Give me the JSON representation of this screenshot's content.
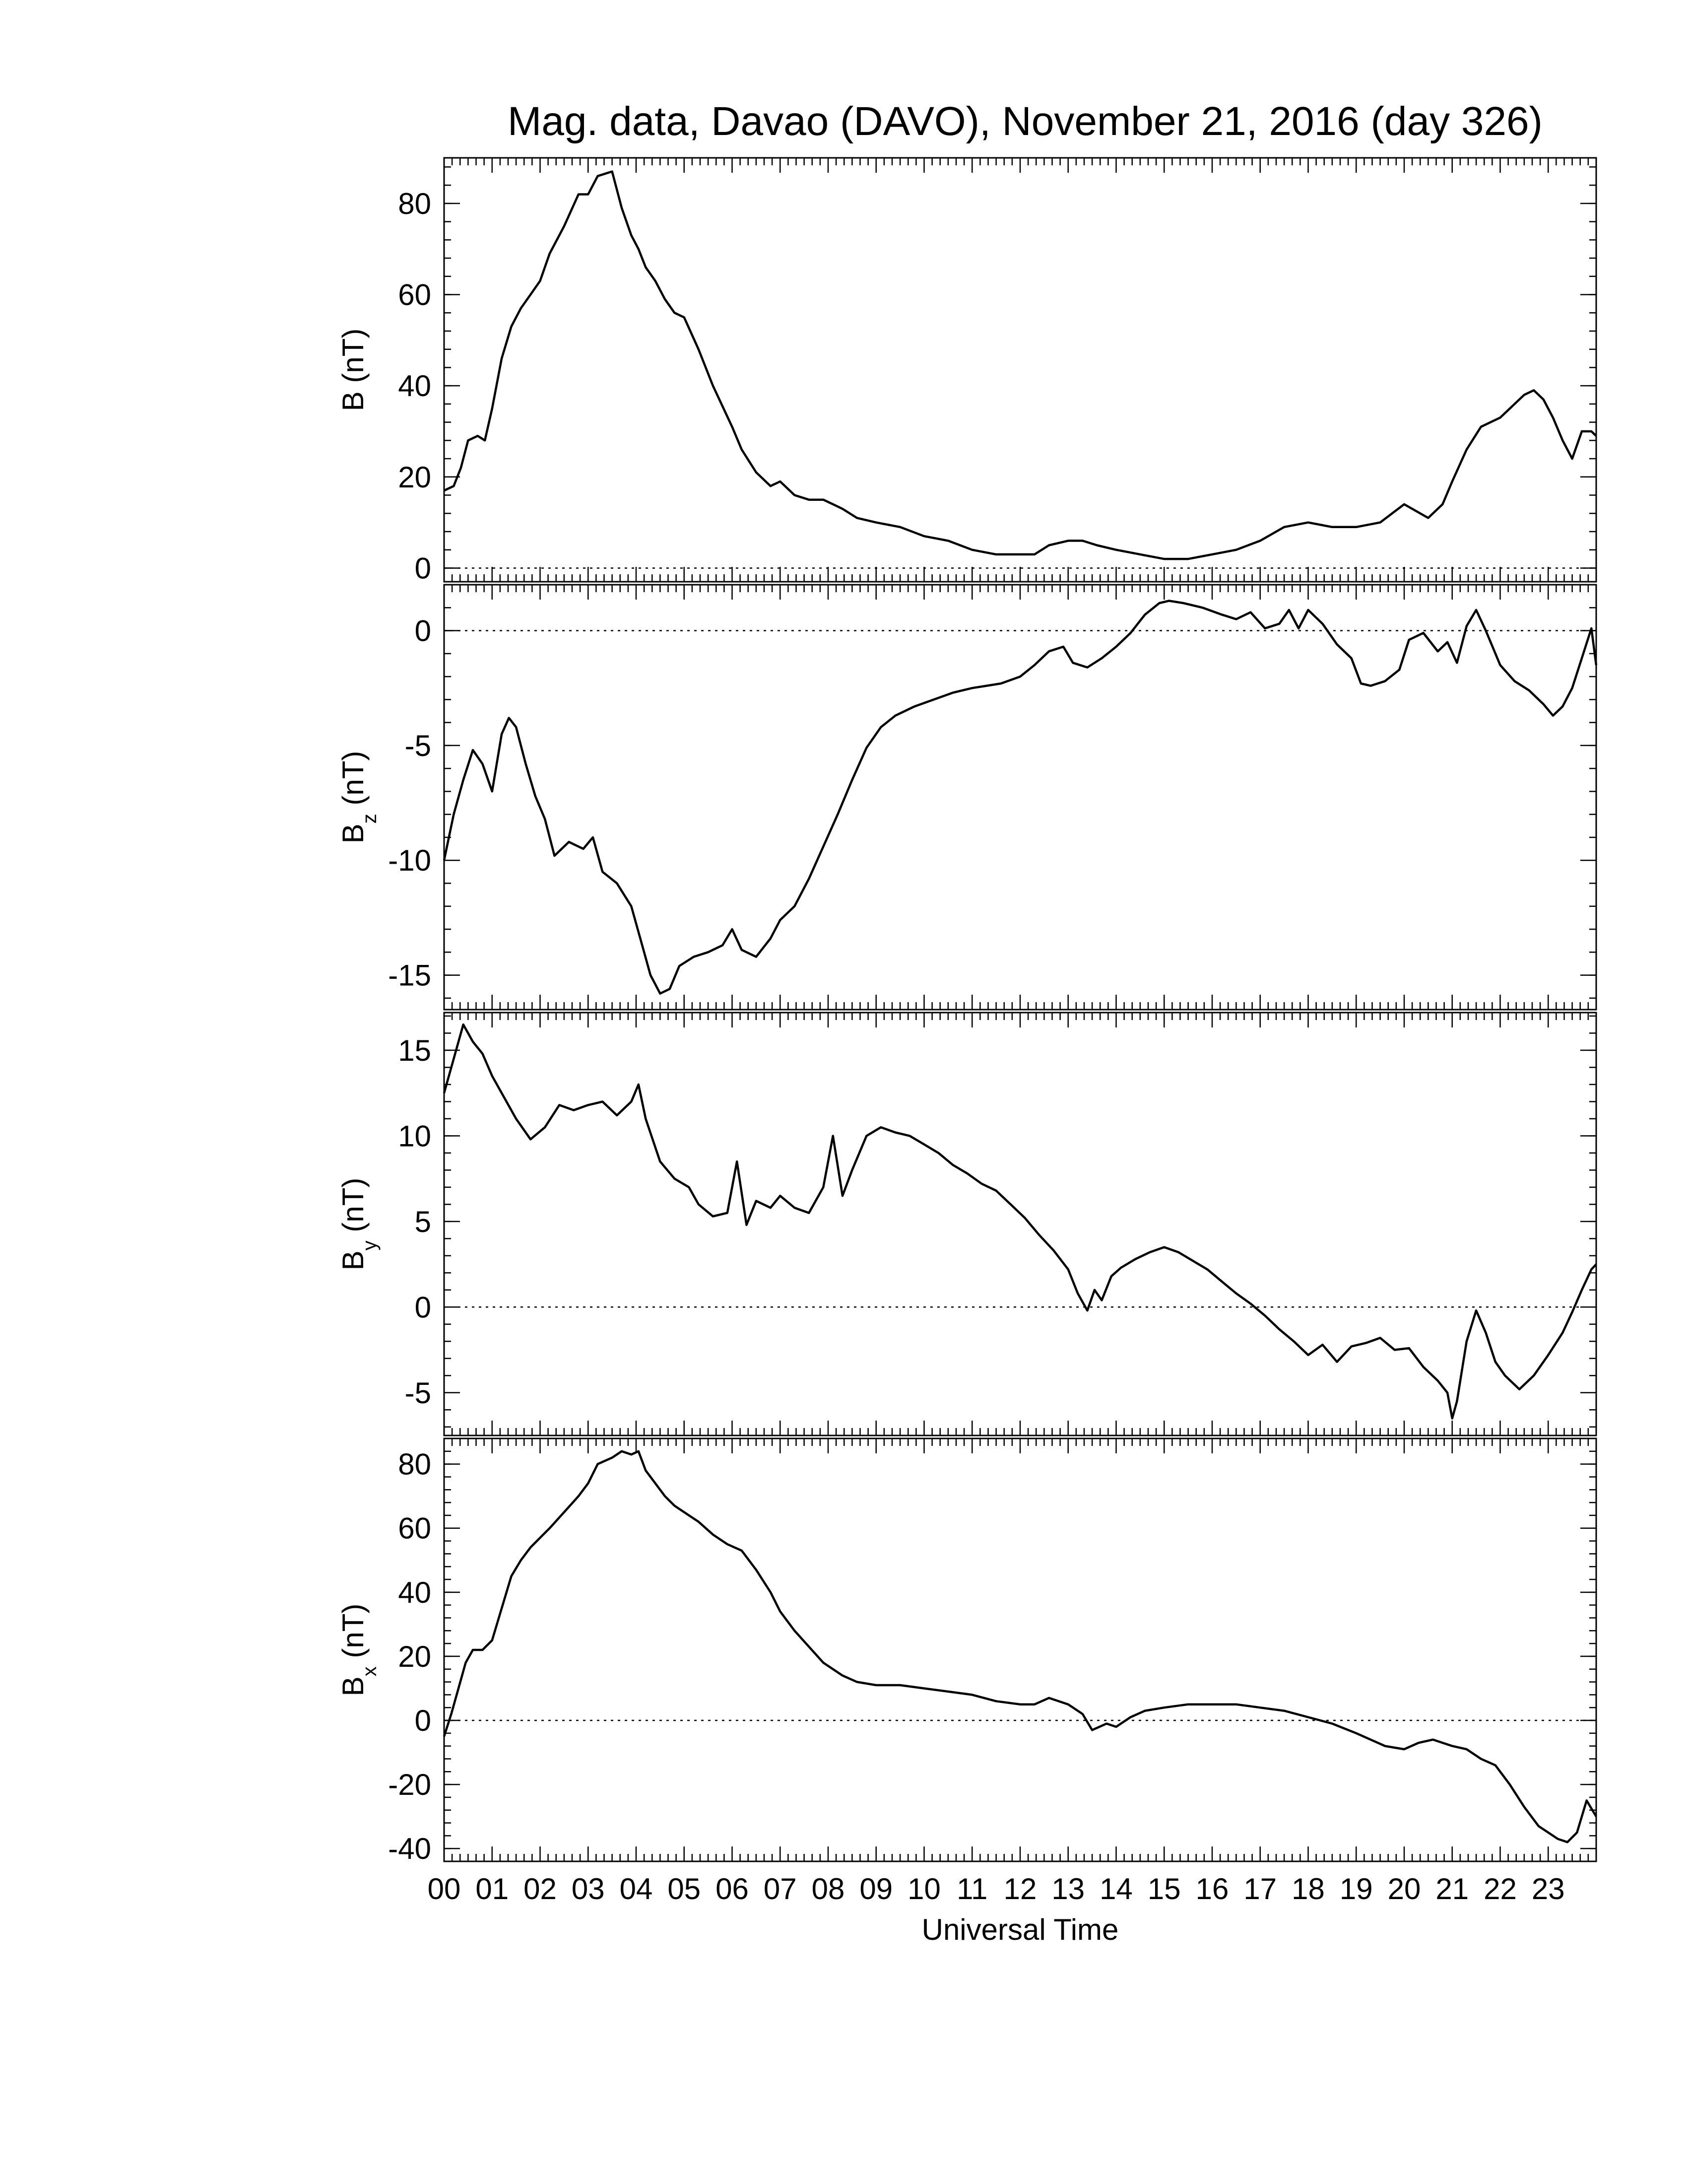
{
  "chart_data": {
    "type": "line",
    "title": "Mag. data, Davao (DAVO), November 21, 2016 (day 326)",
    "xlabel": "Universal Time",
    "x_tick_labels": [
      "00",
      "01",
      "02",
      "03",
      "04",
      "05",
      "06",
      "07",
      "08",
      "09",
      "10",
      "11",
      "12",
      "13",
      "14",
      "15",
      "16",
      "17",
      "18",
      "19",
      "20",
      "21",
      "22",
      "23"
    ],
    "xlim": [
      0,
      24
    ],
    "panels": [
      {
        "ylabel": "B (nT)",
        "ylabel_main": "B",
        "ylabel_sub": "",
        "ylabel_unit": " (nT)",
        "ylim": [
          -3,
          90
        ],
        "yticks": [
          0,
          20,
          40,
          60,
          80
        ],
        "zero_line": true,
        "series": [
          {
            "x": [
              0,
              0.2,
              0.35,
              0.5,
              0.7,
              0.85,
              1.0,
              1.2,
              1.4,
              1.6,
              1.8,
              2.0,
              2.2,
              2.5,
              2.8,
              3.0,
              3.2,
              3.5,
              3.7,
              3.9,
              4.05,
              4.2,
              4.4,
              4.6,
              4.8,
              5.0,
              5.3,
              5.6,
              6.0,
              6.2,
              6.5,
              6.8,
              7.0,
              7.3,
              7.6,
              7.9,
              8.1,
              8.3,
              8.6,
              9.0,
              9.5,
              10.0,
              10.5,
              11.0,
              11.5,
              12.0,
              12.3,
              12.6,
              13.0,
              13.3,
              13.6,
              14.0,
              14.5,
              15.0,
              15.5,
              16.0,
              16.5,
              17.0,
              17.5,
              18.0,
              18.5,
              19.0,
              19.5,
              20.0,
              20.5,
              20.8,
              21.0,
              21.3,
              21.6,
              22.0,
              22.3,
              22.5,
              22.7,
              22.9,
              23.1,
              23.3,
              23.5,
              23.7,
              23.9,
              24.0
            ],
            "y": [
              17,
              18,
              22,
              28,
              29,
              28,
              35,
              46,
              53,
              57,
              60,
              63,
              69,
              75,
              82,
              82,
              86,
              87,
              79,
              73,
              70,
              66,
              63,
              59,
              56,
              55,
              48,
              40,
              31,
              26,
              21,
              18,
              19,
              16,
              15,
              15,
              14,
              13,
              11,
              10,
              9,
              7,
              6,
              4,
              3,
              3,
              3,
              5,
              6,
              6,
              5,
              4,
              3,
              2,
              2,
              3,
              4,
              6,
              9,
              10,
              9,
              9,
              10,
              14,
              11,
              14,
              19,
              26,
              31,
              33,
              36,
              38,
              39,
              37,
              33,
              28,
              24,
              30,
              30,
              29
            ]
          }
        ]
      },
      {
        "ylabel": "Bz (nT)",
        "ylabel_main": "B",
        "ylabel_sub": "z",
        "ylabel_unit": " (nT)",
        "ylim": [
          -16.5,
          2
        ],
        "yticks": [
          0,
          -5,
          -10,
          -15
        ],
        "zero_line": true,
        "series": [
          {
            "x": [
              0,
              0.2,
              0.4,
              0.6,
              0.8,
              1.0,
              1.2,
              1.35,
              1.5,
              1.7,
              1.9,
              2.1,
              2.3,
              2.6,
              2.9,
              3.1,
              3.3,
              3.6,
              3.9,
              4.1,
              4.3,
              4.5,
              4.7,
              4.9,
              5.2,
              5.5,
              5.8,
              6.0,
              6.2,
              6.5,
              6.8,
              7.0,
              7.3,
              7.6,
              7.9,
              8.2,
              8.5,
              8.8,
              9.1,
              9.4,
              9.8,
              10.2,
              10.6,
              11.0,
              11.3,
              11.6,
              12.0,
              12.3,
              12.6,
              12.9,
              13.1,
              13.4,
              13.7,
              14.0,
              14.3,
              14.6,
              14.9,
              15.1,
              15.4,
              15.8,
              16.2,
              16.5,
              16.8,
              17.1,
              17.4,
              17.6,
              17.8,
              18.0,
              18.3,
              18.6,
              18.9,
              19.1,
              19.3,
              19.6,
              19.9,
              20.1,
              20.4,
              20.7,
              20.9,
              21.1,
              21.3,
              21.5,
              21.7,
              22.0,
              22.3,
              22.6,
              22.9,
              23.1,
              23.3,
              23.5,
              23.7,
              23.9,
              24.0
            ],
            "y": [
              -10,
              -8,
              -6.5,
              -5.2,
              -5.8,
              -7,
              -4.5,
              -3.8,
              -4.2,
              -5.8,
              -7.2,
              -8.2,
              -9.8,
              -9.2,
              -9.5,
              -9,
              -10.5,
              -11,
              -12,
              -13.5,
              -15,
              -15.8,
              -15.6,
              -14.6,
              -14.2,
              -14,
              -13.7,
              -13,
              -13.9,
              -14.2,
              -13.4,
              -12.6,
              -12,
              -10.8,
              -9.4,
              -8,
              -6.5,
              -5.1,
              -4.2,
              -3.7,
              -3.3,
              -3,
              -2.7,
              -2.5,
              -2.4,
              -2.3,
              -2,
              -1.5,
              -0.9,
              -0.7,
              -1.4,
              -1.6,
              -1.2,
              -0.7,
              -0.1,
              0.7,
              1.2,
              1.3,
              1.2,
              1,
              0.7,
              0.5,
              0.8,
              0.1,
              0.3,
              0.9,
              0.1,
              0.9,
              0.3,
              -0.6,
              -1.2,
              -2.3,
              -2.4,
              -2.2,
              -1.7,
              -0.4,
              -0.1,
              -0.9,
              -0.5,
              -1.4,
              0.2,
              0.9,
              0,
              -1.5,
              -2.2,
              -2.6,
              -3.2,
              -3.7,
              -3.3,
              -2.5,
              -1.2,
              0.1,
              -1.5
            ]
          }
        ]
      },
      {
        "ylabel": "By (nT)",
        "ylabel_main": "B",
        "ylabel_sub": "y",
        "ylabel_unit": " (nT)",
        "ylim": [
          -7.5,
          17.2
        ],
        "yticks": [
          15,
          10,
          5,
          0,
          -5
        ],
        "zero_line": true,
        "series": [
          {
            "x": [
              0,
              0.2,
              0.4,
              0.6,
              0.8,
              1.0,
              1.2,
              1.5,
              1.8,
              2.1,
              2.4,
              2.7,
              3.0,
              3.3,
              3.6,
              3.9,
              4.05,
              4.2,
              4.5,
              4.8,
              5.1,
              5.3,
              5.6,
              5.9,
              6.1,
              6.3,
              6.5,
              6.8,
              7.0,
              7.3,
              7.6,
              7.9,
              8.1,
              8.3,
              8.5,
              8.8,
              9.1,
              9.4,
              9.7,
              10.0,
              10.3,
              10.6,
              10.9,
              11.2,
              11.5,
              11.8,
              12.1,
              12.4,
              12.7,
              13.0,
              13.2,
              13.4,
              13.55,
              13.7,
              13.9,
              14.1,
              14.4,
              14.7,
              15.0,
              15.3,
              15.6,
              15.9,
              16.2,
              16.5,
              16.8,
              17.1,
              17.4,
              17.7,
              18.0,
              18.3,
              18.6,
              18.9,
              19.2,
              19.5,
              19.8,
              20.1,
              20.4,
              20.7,
              20.9,
              21.0,
              21.1,
              21.3,
              21.5,
              21.7,
              21.9,
              22.1,
              22.4,
              22.7,
              23.0,
              23.3,
              23.5,
              23.7,
              23.9,
              24.0
            ],
            "y": [
              12.5,
              14.5,
              16.5,
              15.5,
              14.8,
              13.5,
              12.5,
              11,
              9.8,
              10.5,
              11.8,
              11.5,
              11.8,
              12,
              11.2,
              12,
              13,
              11,
              8.5,
              7.5,
              7,
              6,
              5.3,
              5.5,
              8.5,
              4.8,
              6.2,
              5.8,
              6.5,
              5.8,
              5.5,
              7,
              10,
              6.5,
              8,
              10,
              10.5,
              10.2,
              10,
              9.5,
              9,
              8.3,
              7.8,
              7.2,
              6.8,
              6,
              5.2,
              4.2,
              3.3,
              2.2,
              0.8,
              -0.2,
              1,
              0.4,
              1.8,
              2.3,
              2.8,
              3.2,
              3.5,
              3.2,
              2.7,
              2.2,
              1.5,
              0.8,
              0.2,
              -0.5,
              -1.3,
              -2,
              -2.8,
              -2.2,
              -3.2,
              -2.3,
              -2.1,
              -1.8,
              -2.5,
              -2.4,
              -3.5,
              -4.3,
              -5,
              -6.5,
              -5.5,
              -2,
              -0.2,
              -1.5,
              -3.2,
              -4,
              -4.8,
              -4,
              -2.8,
              -1.5,
              -0.3,
              1,
              2.2,
              2.5
            ]
          }
        ]
      },
      {
        "ylabel": "Bx (nT)",
        "ylabel_main": "B",
        "ylabel_sub": "x",
        "ylabel_unit": " (nT)",
        "ylim": [
          -44,
          88
        ],
        "yticks": [
          80,
          60,
          40,
          20,
          0,
          -20,
          -40
        ],
        "zero_line": true,
        "series": [
          {
            "x": [
              0,
              0.15,
              0.3,
              0.45,
              0.6,
              0.8,
              1.0,
              1.2,
              1.4,
              1.6,
              1.8,
              2.0,
              2.2,
              2.5,
              2.8,
              3.0,
              3.2,
              3.5,
              3.7,
              3.9,
              4.05,
              4.2,
              4.4,
              4.6,
              4.8,
              5.0,
              5.3,
              5.6,
              5.9,
              6.2,
              6.5,
              6.8,
              7.0,
              7.3,
              7.6,
              7.9,
              8.1,
              8.3,
              8.6,
              9.0,
              9.5,
              10.0,
              10.5,
              11.0,
              11.5,
              12.0,
              12.3,
              12.6,
              13.0,
              13.3,
              13.5,
              13.8,
              14.0,
              14.3,
              14.6,
              15.0,
              15.5,
              16.0,
              16.5,
              17.0,
              17.5,
              18.0,
              18.5,
              19.0,
              19.3,
              19.6,
              20.0,
              20.3,
              20.6,
              21.0,
              21.3,
              21.6,
              21.9,
              22.2,
              22.5,
              22.8,
              23.0,
              23.2,
              23.4,
              23.6,
              23.8,
              24.0
            ],
            "y": [
              -5,
              2,
              10,
              18,
              22,
              22,
              25,
              35,
              45,
              50,
              54,
              57,
              60,
              65,
              70,
              74,
              80,
              82,
              84,
              83,
              84,
              78,
              74,
              70,
              67,
              65,
              62,
              58,
              55,
              53,
              47,
              40,
              34,
              28,
              23,
              18,
              16,
              14,
              12,
              11,
              11,
              10,
              9,
              8,
              6,
              5,
              5,
              7,
              5,
              2,
              -3,
              -1,
              -2,
              1,
              3,
              4,
              5,
              5,
              5,
              4,
              3,
              1,
              -1,
              -4,
              -6,
              -8,
              -9,
              -7,
              -6,
              -8,
              -9,
              -12,
              -14,
              -20,
              -27,
              -33,
              -35,
              -37,
              -38,
              -35,
              -25,
              -30
            ]
          }
        ]
      }
    ],
    "grid": false,
    "legend": "none"
  }
}
